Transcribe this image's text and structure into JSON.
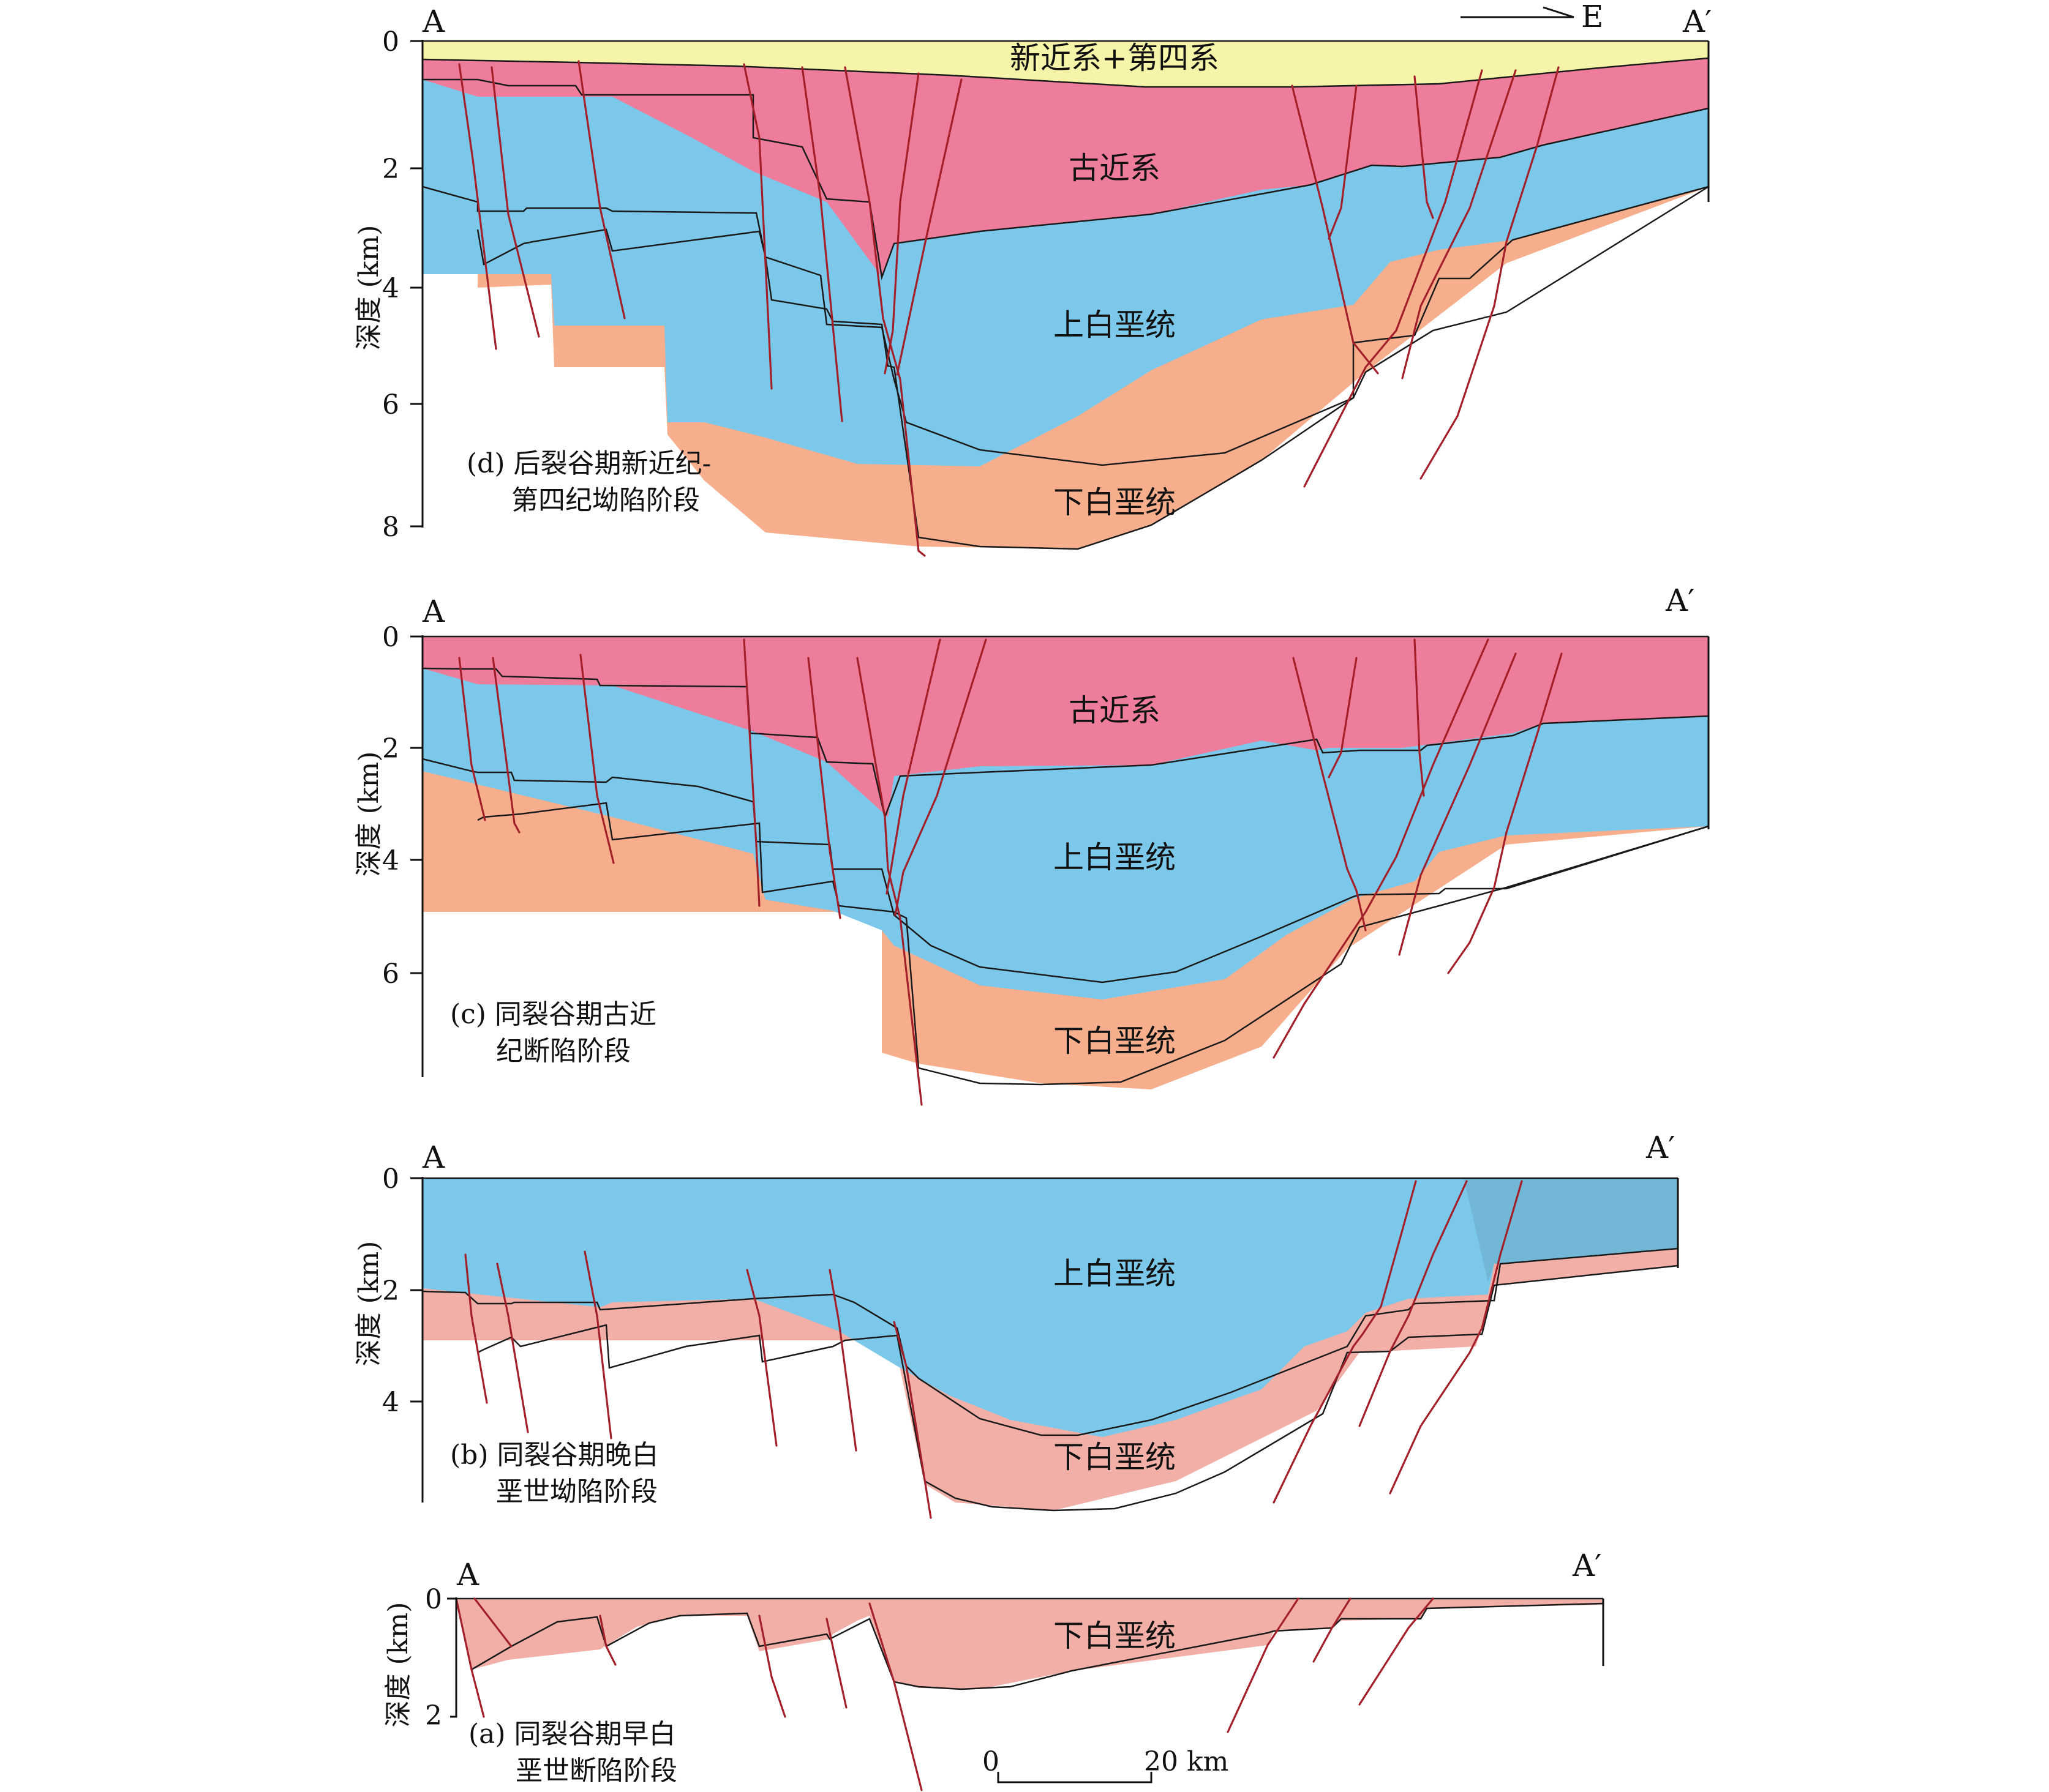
{
  "colors": {
    "neogene_quaternary": "#f6f4a8",
    "paleogene": "#ee7d9c",
    "upper_cretaceous": "#7bc8ea",
    "lower_cretaceous": "#f7ae8c",
    "lower_cretaceous_early": "#f1afa8",
    "fault": "#a3202a",
    "boundary": "#1a1a1a"
  },
  "direction": "E",
  "scale_bar": {
    "start": "0",
    "end": "20 km"
  },
  "panels": {
    "d": {
      "end_left": "A",
      "end_right": "A′",
      "ylabel": "深度 (km)",
      "ticks": [
        "0",
        "2",
        "4",
        "6",
        "8"
      ],
      "labels": {
        "quaternary": "新近系+第四系",
        "paleogene": "古近系",
        "upper": "上白垩统",
        "lower": "下白垩统"
      },
      "caption": [
        "(d) 后裂谷期新近纪-",
        "第四纪坳陷阶段"
      ]
    },
    "c": {
      "end_left": "A",
      "end_right": "A′",
      "ylabel": "深度 (km)",
      "ticks": [
        "0",
        "2",
        "4",
        "6"
      ],
      "labels": {
        "paleogene": "古近系",
        "upper": "上白垩统",
        "lower": "下白垩统"
      },
      "caption": [
        "(c) 同裂谷期古近",
        "纪断陷阶段"
      ]
    },
    "b": {
      "end_left": "A",
      "end_right": "A′",
      "ylabel": "深度 (km)",
      "ticks": [
        "0",
        "2",
        "4"
      ],
      "labels": {
        "upper": "上白垩统",
        "lower": "下白垩统"
      },
      "caption": [
        "(b) 同裂谷期晚白",
        "垩世坳陷阶段"
      ]
    },
    "a": {
      "end_left": "A",
      "end_right": "A′",
      "ylabel": "深度 (km)",
      "ticks": [
        "0",
        "2"
      ],
      "labels": {
        "lower": "下白垩统"
      },
      "caption": [
        "(a) 同裂谷期早白",
        "垩世断陷阶段"
      ]
    }
  }
}
